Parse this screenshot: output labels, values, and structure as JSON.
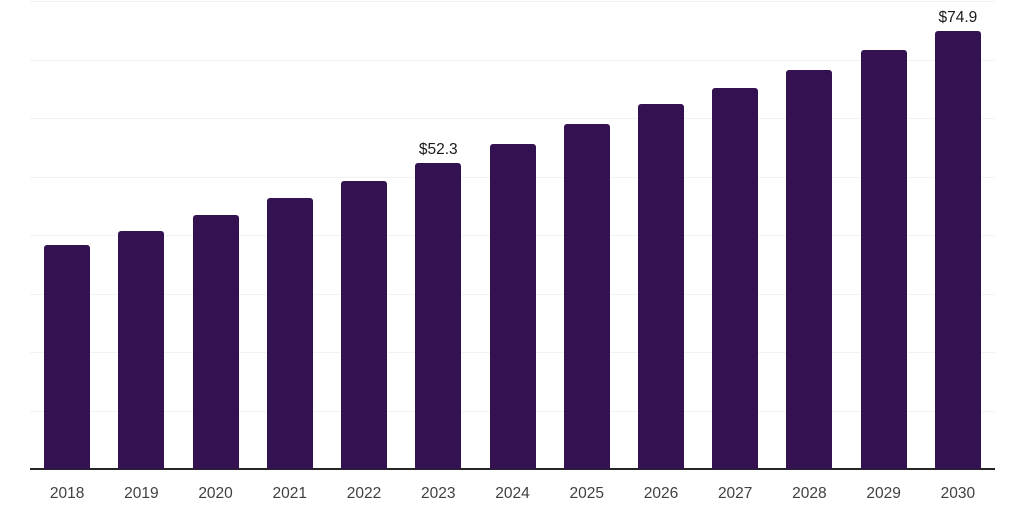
{
  "chart_data": {
    "type": "bar",
    "title": "",
    "xlabel": "",
    "ylabel": "",
    "categories": [
      "2018",
      "2019",
      "2020",
      "2021",
      "2022",
      "2023",
      "2024",
      "2025",
      "2026",
      "2027",
      "2028",
      "2029",
      "2030"
    ],
    "values": [
      38.3,
      40.7,
      43.4,
      46.3,
      49.2,
      52.3,
      55.6,
      58.9,
      62.4,
      65.1,
      68.2,
      71.6,
      74.9
    ],
    "data_labels": [
      "",
      "",
      "",
      "",
      "",
      "$52.3",
      "",
      "",
      "",
      "",
      "",
      "",
      "$74.9"
    ],
    "unit_prefix": "$",
    "ylim": [
      0,
      80
    ],
    "gridline_step": 10,
    "grid": true,
    "legend": false,
    "y_axis_labels_visible": false,
    "bar_color": "#341150"
  },
  "colors": {
    "bar": "#341150",
    "grid": "#f2f2f2",
    "axis": "#262626",
    "tick_label": "#404040",
    "data_label": "#1a1a1a",
    "background": "#ffffff"
  }
}
